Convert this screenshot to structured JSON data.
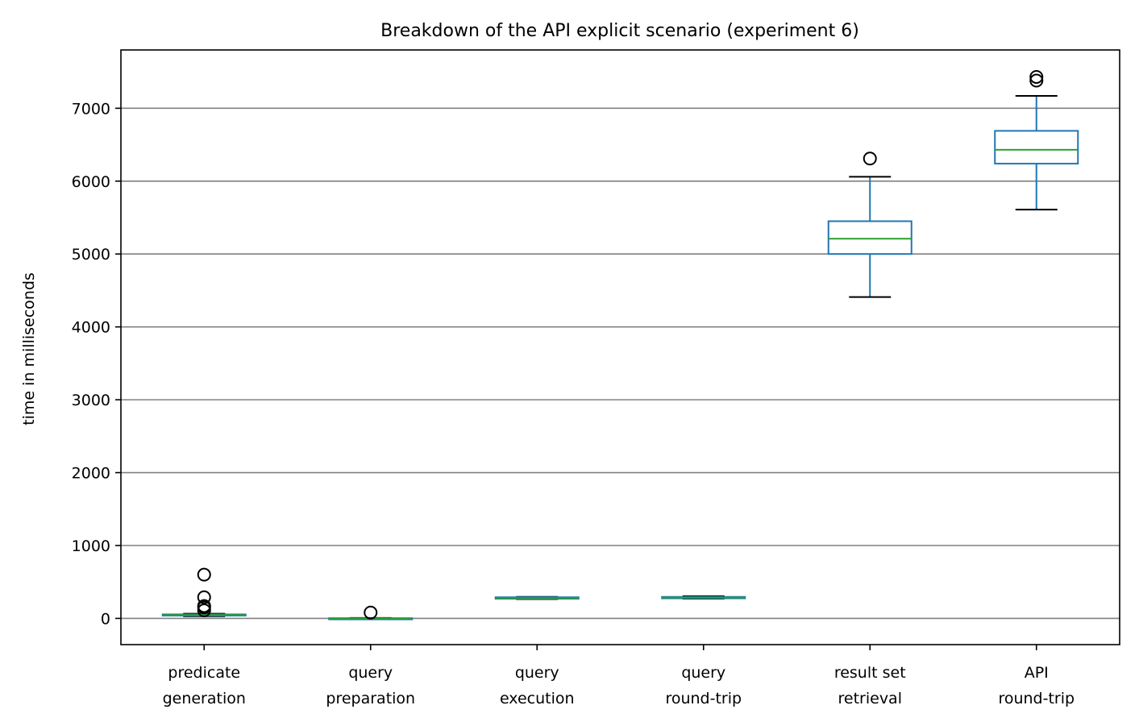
{
  "chart_data": {
    "type": "box",
    "title": "Breakdown of the API explicit scenario (experiment 6)",
    "xlabel": "",
    "ylabel": "time in milliseconds",
    "ylim": [
      -360,
      7800
    ],
    "yticks": [
      0,
      1000,
      2000,
      3000,
      4000,
      5000,
      6000,
      7000
    ],
    "grid": "horizontal",
    "categories": [
      [
        "predicate",
        "generation"
      ],
      [
        "query",
        "preparation"
      ],
      [
        "query",
        "execution"
      ],
      [
        "query",
        "round-trip"
      ],
      [
        "result set",
        "retrieval"
      ],
      [
        "API",
        "round-trip"
      ]
    ],
    "boxes": [
      {
        "whislo": 30,
        "q1": 40,
        "med": 45,
        "q3": 55,
        "whishi": 65,
        "fliers": [
          600,
          290,
          170,
          150,
          110
        ]
      },
      {
        "whislo": -5,
        "q1": -2,
        "med": 0,
        "q3": 3,
        "whishi": 6,
        "fliers": [
          80
        ]
      },
      {
        "whislo": 265,
        "q1": 270,
        "med": 280,
        "q3": 290,
        "whishi": 295,
        "fliers": []
      },
      {
        "whislo": 270,
        "q1": 275,
        "med": 285,
        "q3": 295,
        "whishi": 305,
        "fliers": []
      },
      {
        "whislo": 4410,
        "q1": 5000,
        "med": 5210,
        "q3": 5450,
        "whishi": 6060,
        "fliers": [
          6310
        ]
      },
      {
        "whislo": 5610,
        "q1": 6240,
        "med": 6430,
        "q3": 6690,
        "whishi": 7170,
        "fliers": [
          7380,
          7430
        ]
      }
    ],
    "colors": {
      "box": "#1f77b4",
      "median": "#2ca02c",
      "cap": "#000000",
      "grid": "#808080"
    }
  }
}
